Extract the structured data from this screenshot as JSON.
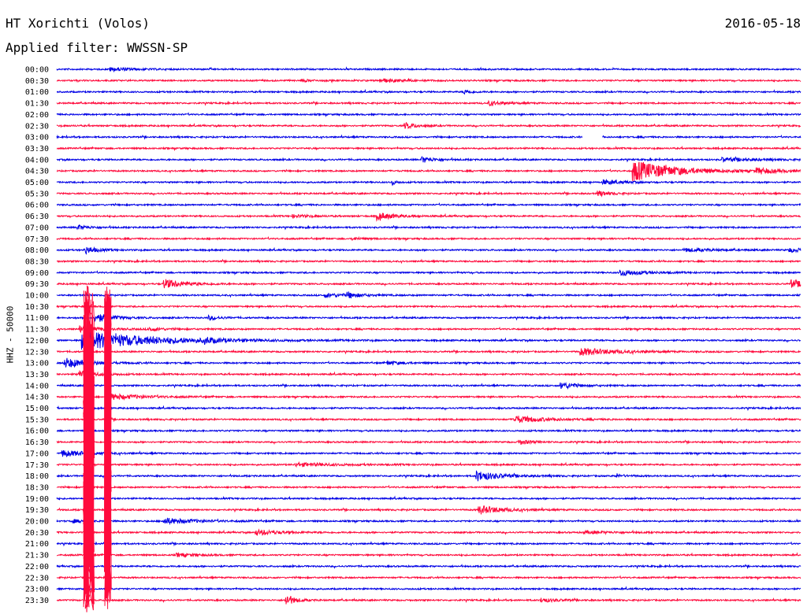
{
  "header": {
    "station": "HT Xorichti (Volos)",
    "date": "2016-05-18",
    "filter_label": "Applied filter: WWSSN-SP",
    "channel_label": "HHZ - 50000"
  },
  "colors": {
    "odd_rows": "#0000e6",
    "even_rows": "#ff0a3c"
  },
  "chart_data": {
    "type": "line",
    "title": "HT Xorichti (Volos)",
    "subtitle": "Applied filter: WWSSN-SP",
    "ylabel": "HHZ - 50000",
    "row_labels": [
      "00:00",
      "00:30",
      "01:00",
      "01:30",
      "02:00",
      "02:30",
      "03:00",
      "03:30",
      "04:00",
      "04:30",
      "05:00",
      "05:30",
      "06:00",
      "06:30",
      "07:00",
      "07:30",
      "08:00",
      "08:30",
      "09:00",
      "09:30",
      "10:00",
      "10:30",
      "11:00",
      "11:30",
      "12:00",
      "12:30",
      "13:00",
      "13:30",
      "14:00",
      "14:30",
      "15:00",
      "15:30",
      "16:00",
      "16:30",
      "17:00",
      "17:30",
      "18:00",
      "18:30",
      "19:00",
      "19:30",
      "20:00",
      "20:30",
      "21:00",
      "21:30",
      "22:00",
      "22:30",
      "23:00",
      "23:30"
    ],
    "row_duration_minutes": 30,
    "series_colors": [
      "#0000e6",
      "#ff0a3c"
    ],
    "gaps": [
      {
        "row": "03:00",
        "from_min": 21.2,
        "to_min": 22.0
      }
    ],
    "events": [
      {
        "row": "00:00",
        "t_min": 2.1,
        "amp": 0.25,
        "dur": 2.0
      },
      {
        "row": "00:30",
        "t_min": 13.0,
        "amp": 0.25,
        "dur": 2.0
      },
      {
        "row": "00:30",
        "t_min": 9.8,
        "amp": 0.15,
        "dur": 1.0
      },
      {
        "row": "01:00",
        "t_min": 16.4,
        "amp": 0.35,
        "dur": 0.6
      },
      {
        "row": "01:30",
        "t_min": 17.4,
        "amp": 0.3,
        "dur": 1.5
      },
      {
        "row": "02:30",
        "t_min": 14.0,
        "amp": 0.45,
        "dur": 1.0
      },
      {
        "row": "04:00",
        "t_min": 14.7,
        "amp": 0.45,
        "dur": 1.0
      },
      {
        "row": "04:00",
        "t_min": 26.8,
        "amp": 0.3,
        "dur": 2.5
      },
      {
        "row": "04:30",
        "t_min": 23.2,
        "amp": 1.6,
        "dur": 3.5
      },
      {
        "row": "04:30",
        "t_min": 28.2,
        "amp": 0.35,
        "dur": 2.0
      },
      {
        "row": "05:00",
        "t_min": 13.5,
        "amp": 0.5,
        "dur": 0.3
      },
      {
        "row": "05:00",
        "t_min": 22.0,
        "amp": 0.35,
        "dur": 1.5
      },
      {
        "row": "05:30",
        "t_min": 21.8,
        "amp": 0.4,
        "dur": 1.0
      },
      {
        "row": "06:30",
        "t_min": 12.9,
        "amp": 0.55,
        "dur": 1.5
      },
      {
        "row": "06:30",
        "t_min": 9.5,
        "amp": 0.2,
        "dur": 1.5
      },
      {
        "row": "07:00",
        "t_min": 0.8,
        "amp": 0.35,
        "dur": 1.0
      },
      {
        "row": "07:30",
        "t_min": 11.9,
        "amp": 0.2,
        "dur": 1.0
      },
      {
        "row": "08:00",
        "t_min": 1.1,
        "amp": 0.6,
        "dur": 1.0
      },
      {
        "row": "08:00",
        "t_min": 25.3,
        "amp": 0.25,
        "dur": 2.5
      },
      {
        "row": "08:00",
        "t_min": 29.5,
        "amp": 0.3,
        "dur": 1.5
      },
      {
        "row": "09:00",
        "t_min": 22.7,
        "amp": 0.45,
        "dur": 2.0
      },
      {
        "row": "09:30",
        "t_min": 4.3,
        "amp": 0.7,
        "dur": 1.8
      },
      {
        "row": "09:30",
        "t_min": 29.6,
        "amp": 0.6,
        "dur": 1.2
      },
      {
        "row": "10:00",
        "t_min": 10.8,
        "amp": 0.25,
        "dur": 2.5
      },
      {
        "row": "10:00",
        "t_min": 11.7,
        "amp": 0.45,
        "dur": 0.7
      },
      {
        "row": "11:00",
        "t_min": 1.5,
        "amp": 0.7,
        "dur": 1.5
      },
      {
        "row": "11:00",
        "t_min": 6.1,
        "amp": 0.3,
        "dur": 1.0
      },
      {
        "row": "11:30",
        "t_min": 0.9,
        "amp": 0.4,
        "dur": 2.0
      },
      {
        "row": "11:30",
        "t_min": 3.7,
        "amp": 0.3,
        "dur": 1.0
      },
      {
        "row": "12:00",
        "t_min": 1.0,
        "amp": 1.4,
        "dur": 6.0
      },
      {
        "row": "12:00",
        "t_min": 5.9,
        "amp": 0.35,
        "dur": 1.0
      },
      {
        "row": "12:30",
        "t_min": 21.1,
        "amp": 0.55,
        "dur": 3.0
      },
      {
        "row": "13:00",
        "t_min": 0.3,
        "amp": 0.75,
        "dur": 2.0
      },
      {
        "row": "13:00",
        "t_min": 13.3,
        "amp": 0.25,
        "dur": 1.5
      },
      {
        "row": "13:30",
        "t_min": 0.8,
        "amp": 0.55,
        "dur": 1.5
      },
      {
        "row": "14:00",
        "t_min": 20.3,
        "amp": 0.55,
        "dur": 1.2
      },
      {
        "row": "14:30",
        "t_min": 2.1,
        "amp": 0.45,
        "dur": 2.5
      },
      {
        "row": "15:30",
        "t_min": 18.4,
        "amp": 0.55,
        "dur": 2.5
      },
      {
        "row": "16:30",
        "t_min": 18.6,
        "amp": 0.4,
        "dur": 1.0
      },
      {
        "row": "17:00",
        "t_min": 0.2,
        "amp": 0.5,
        "dur": 2.0
      },
      {
        "row": "17:30",
        "t_min": 9.6,
        "amp": 0.25,
        "dur": 3.5
      },
      {
        "row": "18:00",
        "t_min": 16.9,
        "amp": 0.75,
        "dur": 2.0
      },
      {
        "row": "18:00",
        "t_min": 22.5,
        "amp": 0.2,
        "dur": 1.0
      },
      {
        "row": "19:30",
        "t_min": 17.0,
        "amp": 0.65,
        "dur": 2.0
      },
      {
        "row": "20:00",
        "t_min": 4.3,
        "amp": 0.45,
        "dur": 2.5
      },
      {
        "row": "20:00",
        "t_min": 0.6,
        "amp": 0.3,
        "dur": 0.7
      },
      {
        "row": "20:30",
        "t_min": 8.0,
        "amp": 0.4,
        "dur": 2.0
      },
      {
        "row": "20:30",
        "t_min": 21.2,
        "amp": 0.2,
        "dur": 2.5
      },
      {
        "row": "21:30",
        "t_min": 4.8,
        "amp": 0.25,
        "dur": 1.5
      },
      {
        "row": "23:30",
        "t_min": 9.2,
        "amp": 0.9,
        "dur": 0.8
      },
      {
        "row": "23:30",
        "t_min": 19.5,
        "amp": 0.3,
        "dur": 1.5
      }
    ],
    "large_event": {
      "rows": [
        "11:30",
        "12:00",
        "12:30",
        "13:00",
        "13:30",
        "14:00",
        "14:30",
        "15:00",
        "15:30",
        "16:00",
        "16:30",
        "17:00",
        "17:30",
        "18:00",
        "18:30",
        "19:00",
        "19:30",
        "20:00",
        "20:30",
        "21:00",
        "21:30",
        "22:00",
        "22:30",
        "23:00",
        "23:30"
      ],
      "primary_onset_min": 1.2,
      "secondary_onset_min": 2.0,
      "color": "#ff0a3c"
    }
  }
}
